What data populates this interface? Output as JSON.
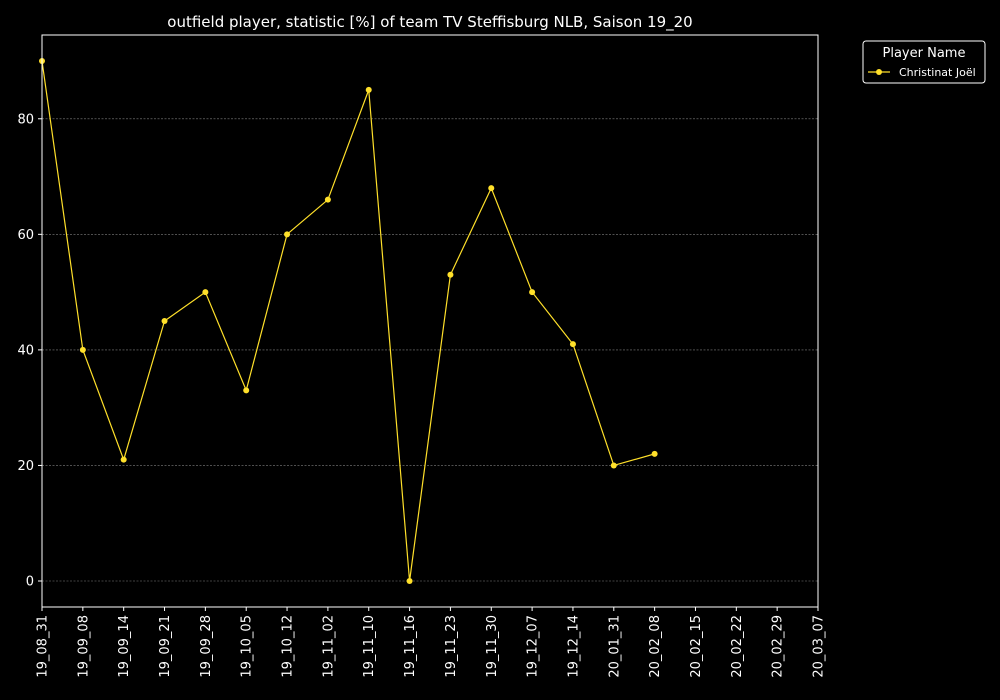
{
  "chart_data": {
    "type": "line",
    "title": "outfield player, statistic [%] of team TV Steffisburg NLB, Saison 19_20",
    "xlabel": "",
    "ylabel": "",
    "categories": [
      "19_08_31",
      "19_09_08",
      "19_09_14",
      "19_09_21",
      "19_09_28",
      "19_10_05",
      "19_10_12",
      "19_11_02",
      "19_11_10",
      "19_11_16",
      "19_11_23",
      "19_11_30",
      "19_12_07",
      "19_12_14",
      "20_01_31",
      "20_02_08",
      "20_02_15",
      "20_02_22",
      "20_02_29",
      "20_03_07"
    ],
    "series": [
      {
        "name": "Christinat Joël",
        "color": "#ffe02a",
        "values": [
          90,
          40,
          21,
          45,
          50,
          33,
          60,
          66,
          85,
          0,
          53,
          68,
          50,
          41,
          20,
          22,
          null,
          null,
          null,
          null
        ]
      }
    ],
    "yticks": [
      0,
      20,
      40,
      60,
      80
    ],
    "ylim": [
      -4.5,
      94.5
    ],
    "grid": true,
    "legend": {
      "title": "Player Name",
      "placement": "outside-top-right"
    },
    "colors": {
      "background": "#000000",
      "axis": "#ffffff",
      "grid": "#808080",
      "text": "#ffffff"
    }
  }
}
